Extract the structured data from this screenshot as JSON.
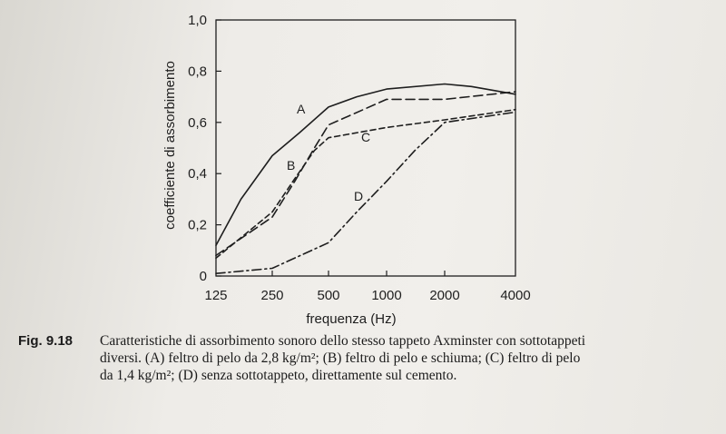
{
  "chart_data": {
    "type": "line",
    "xlabel": "frequenza (Hz)",
    "ylabel": "coefficiente di assorbimento",
    "x_scale": "log",
    "x_ticks": [
      125,
      250,
      500,
      1000,
      2000,
      4000
    ],
    "x_tick_labels": [
      "125",
      "250",
      "500",
      "1000",
      "2000",
      "4000"
    ],
    "ylim": [
      0,
      1.0
    ],
    "y_ticks": [
      0,
      0.2,
      0.4,
      0.6,
      0.8,
      1.0
    ],
    "y_tick_labels": [
      "0",
      "0,2",
      "0,4",
      "0,6",
      "0,8",
      "1,0"
    ],
    "grid": false,
    "series": [
      {
        "name": "A",
        "style": "solid",
        "x": [
          125,
          170,
          250,
          350,
          500,
          700,
          1000,
          2000,
          2600,
          4000
        ],
        "y": [
          0.12,
          0.3,
          0.47,
          0.56,
          0.66,
          0.7,
          0.73,
          0.75,
          0.74,
          0.71
        ]
      },
      {
        "name": "B",
        "style": "dashed",
        "x": [
          125,
          250,
          330,
          420,
          500,
          1000,
          2000,
          4000
        ],
        "y": [
          0.08,
          0.23,
          0.37,
          0.5,
          0.59,
          0.69,
          0.69,
          0.72
        ]
      },
      {
        "name": "C",
        "style": "short-dashed",
        "x": [
          125,
          250,
          330,
          420,
          500,
          1000,
          2000,
          4000
        ],
        "y": [
          0.07,
          0.25,
          0.38,
          0.49,
          0.54,
          0.58,
          0.61,
          0.65
        ]
      },
      {
        "name": "D",
        "style": "dash-dot",
        "x": [
          125,
          250,
          500,
          700,
          1000,
          1400,
          2000,
          4000
        ],
        "y": [
          0.01,
          0.03,
          0.13,
          0.25,
          0.37,
          0.49,
          0.6,
          0.64
        ]
      }
    ],
    "series_labels": [
      "A",
      "B",
      "C",
      "D"
    ]
  },
  "caption": {
    "figure_number": "Fig. 9.18",
    "line1": "Caratteristiche di assorbimento sonoro dello stesso tappeto Axminster con sottotappeti",
    "line2": "diversi. (A) feltro di pelo da 2,8 kg/m²; (B) feltro di pelo e schiuma; (C) feltro di pelo",
    "line3": "da 1,4 kg/m²; (D) senza sottotappeto, direttamente sul cemento."
  },
  "colors": {
    "ink": "#1e1e1e",
    "paper": "#eeece8"
  }
}
